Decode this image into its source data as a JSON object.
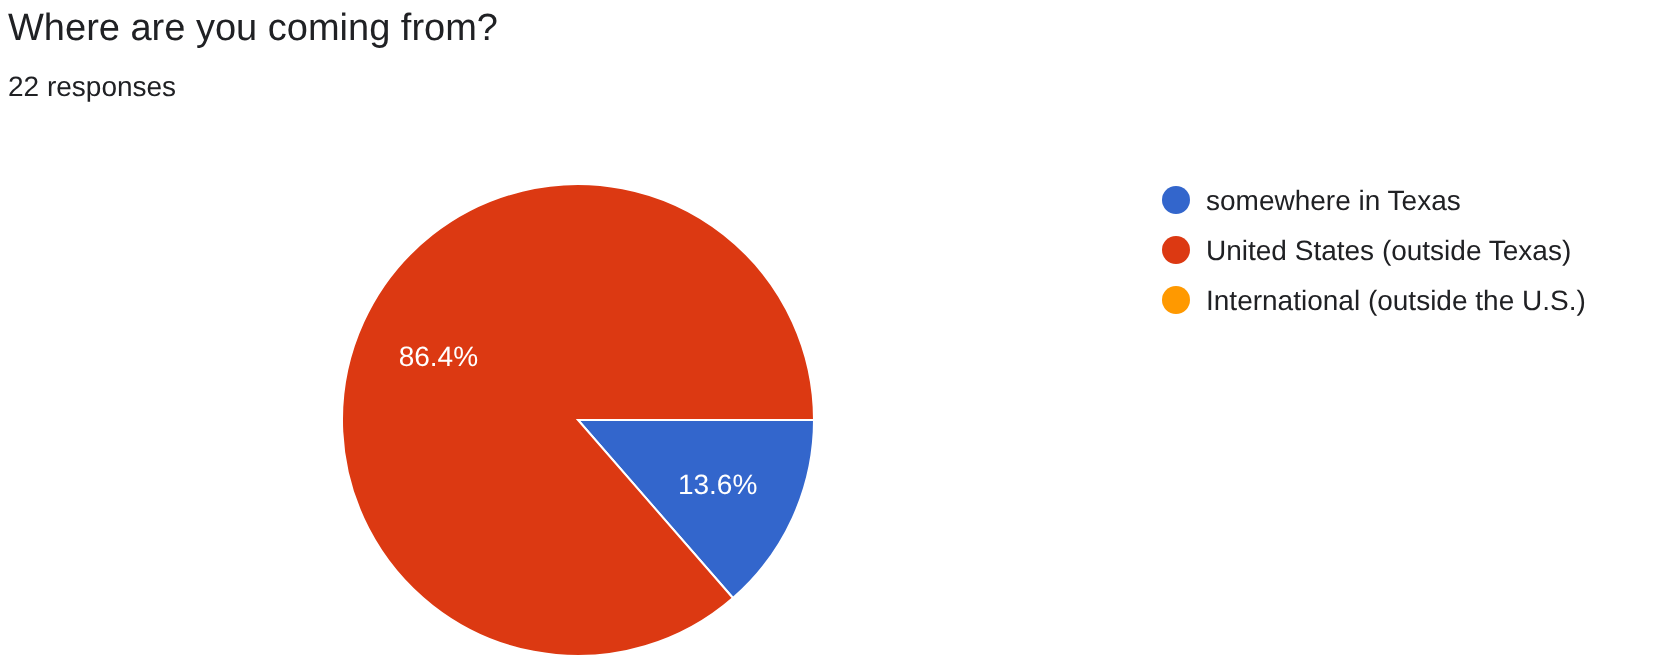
{
  "chart_data": {
    "type": "pie",
    "title": "Where are you coming from?",
    "subtitle": "22 responses",
    "categories": [
      "somewhere in Texas",
      "United States (outside Texas)",
      "International (outside the U.S.)"
    ],
    "values": [
      13.6,
      86.4,
      0
    ],
    "colors": [
      "#3366cc",
      "#dc3912",
      "#ff9900"
    ],
    "value_labels": [
      "13.6%",
      "86.4%",
      null
    ],
    "legend": "right"
  }
}
